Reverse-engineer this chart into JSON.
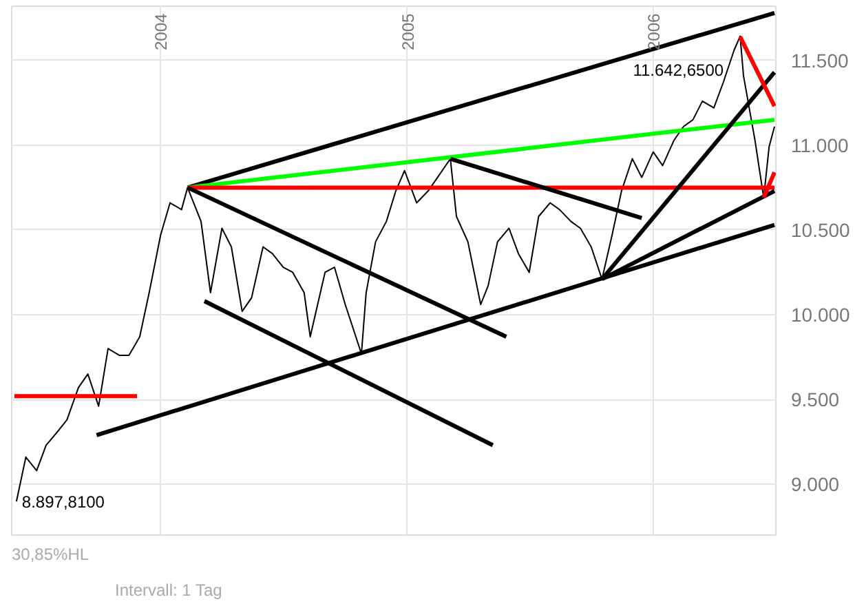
{
  "chart_data": {
    "type": "line",
    "xlim": [
      "2003-05-25",
      "2006-07-02"
    ],
    "ylim": [
      8700,
      11820
    ],
    "xticks": [
      {
        "value": "2004-01-01",
        "label": "2004"
      },
      {
        "value": "2005-01-01",
        "label": "2005"
      },
      {
        "value": "2006-01-01",
        "label": "2006"
      }
    ],
    "yticks": [
      {
        "value": 9000,
        "label": "9.000"
      },
      {
        "value": 9500,
        "label": "9.500"
      },
      {
        "value": 10000,
        "label": "10.000"
      },
      {
        "value": 10500,
        "label": "10.500"
      },
      {
        "value": 11000,
        "label": "11.000"
      },
      {
        "value": 11500,
        "label": "11.500"
      }
    ],
    "grid": true,
    "marker": "none",
    "line_style": "solid",
    "annotations": [
      {
        "text": "11.642,6500",
        "x": "2006-05-10",
        "y": 11642.65
      },
      {
        "text": "8.897,8100",
        "x": "2003-06-01",
        "y": 8897.81
      },
      "30,85%HL",
      "Intervall: 1 Tag"
    ],
    "series": [
      {
        "color": "#000000",
        "x": [
          "2003-06-01",
          "2003-06-15",
          "2003-07-01",
          "2003-07-15",
          "2003-08-01",
          "2003-08-15",
          "2003-09-01",
          "2003-09-15",
          "2003-10-01",
          "2003-10-15",
          "2003-11-01",
          "2003-11-15",
          "2003-12-01",
          "2003-12-15",
          "2004-01-01",
          "2004-01-15",
          "2004-02-01",
          "2004-02-10",
          "2004-03-01",
          "2004-03-15",
          "2004-04-01",
          "2004-04-15",
          "2004-05-01",
          "2004-05-15",
          "2004-06-01",
          "2004-06-15",
          "2004-07-01",
          "2004-07-15",
          "2004-08-01",
          "2004-08-10",
          "2004-09-01",
          "2004-09-15",
          "2004-10-01",
          "2004-10-25",
          "2004-11-01",
          "2004-11-15",
          "2004-12-01",
          "2004-12-15",
          "2004-12-28",
          "2005-01-15",
          "2005-02-01",
          "2005-02-15",
          "2005-03-06",
          "2005-03-15",
          "2005-04-01",
          "2005-04-20",
          "2005-05-01",
          "2005-05-15",
          "2005-06-01",
          "2005-06-15",
          "2005-07-01",
          "2005-07-15",
          "2005-08-01",
          "2005-08-15",
          "2005-09-01",
          "2005-09-15",
          "2005-10-01",
          "2005-10-17",
          "2005-11-01",
          "2005-11-15",
          "2005-12-01",
          "2005-12-15",
          "2006-01-01",
          "2006-01-15",
          "2006-02-01",
          "2006-02-15",
          "2006-03-01",
          "2006-03-15",
          "2006-04-01",
          "2006-04-15",
          "2006-05-01",
          "2006-05-10",
          "2006-05-15",
          "2006-06-01",
          "2006-06-14",
          "2006-06-22",
          "2006-06-30"
        ],
        "values": [
          8897.81,
          9160,
          9080,
          9230,
          9310,
          9380,
          9570,
          9650,
          9460,
          9800,
          9760,
          9760,
          9870,
          10130,
          10470,
          10660,
          10620,
          10750,
          10550,
          10130,
          10510,
          10400,
          10020,
          10100,
          10400,
          10360,
          10280,
          10250,
          10130,
          9870,
          10250,
          10280,
          10060,
          9770,
          10130,
          10430,
          10550,
          10730,
          10850,
          10660,
          10730,
          10810,
          10920,
          10580,
          10430,
          10060,
          10170,
          10430,
          10510,
          10360,
          10250,
          10580,
          10660,
          10620,
          10550,
          10510,
          10400,
          10210,
          10470,
          10730,
          10920,
          10810,
          10960,
          10880,
          11030,
          11110,
          11150,
          11260,
          11220,
          11370,
          11560,
          11642.65,
          11410,
          11030,
          10690,
          10990,
          11110
        ]
      },
      {
        "color": "#000000",
        "x": [
          "2004-02-10",
          "2006-06-30"
        ],
        "values": [
          10750,
          11780
        ]
      },
      {
        "color": "#00ff00",
        "x": [
          "2004-02-10",
          "2006-06-30"
        ],
        "values": [
          10750,
          11150
        ]
      },
      {
        "color": "#ff0000",
        "x": [
          "2004-02-10",
          "2006-06-30"
        ],
        "values": [
          10750,
          10750
        ]
      },
      {
        "color": "#000000",
        "x": [
          "2004-02-10",
          "2005-05-28"
        ],
        "values": [
          10750,
          9870
        ]
      },
      {
        "color": "#000000",
        "x": [
          "2004-03-06",
          "2005-05-08"
        ],
        "values": [
          10080,
          9230
        ]
      },
      {
        "color": "#000000",
        "x": [
          "2005-03-06",
          "2005-12-15"
        ],
        "values": [
          10920,
          10570
        ]
      },
      {
        "color": "#000000",
        "x": [
          "2003-09-28",
          "2006-06-30"
        ],
        "values": [
          9290,
          10530
        ]
      },
      {
        "color": "#000000",
        "x": [
          "2005-10-17",
          "2006-06-30"
        ],
        "values": [
          10210,
          11430
        ]
      },
      {
        "color": "#000000",
        "x": [
          "2005-10-17",
          "2006-06-30"
        ],
        "values": [
          10210,
          10730
        ]
      },
      {
        "color": "#ff0000",
        "x": [
          "2003-05-29",
          "2003-11-27"
        ],
        "values": [
          9520,
          9520
        ]
      },
      {
        "color": "#ff0000",
        "x": [
          "2006-05-10",
          "2006-06-30"
        ],
        "values": [
          11640,
          11230
        ]
      },
      {
        "color": "#ff0000",
        "x": [
          "2006-06-14",
          "2006-06-30"
        ],
        "values": [
          10690,
          10840
        ]
      }
    ]
  }
}
